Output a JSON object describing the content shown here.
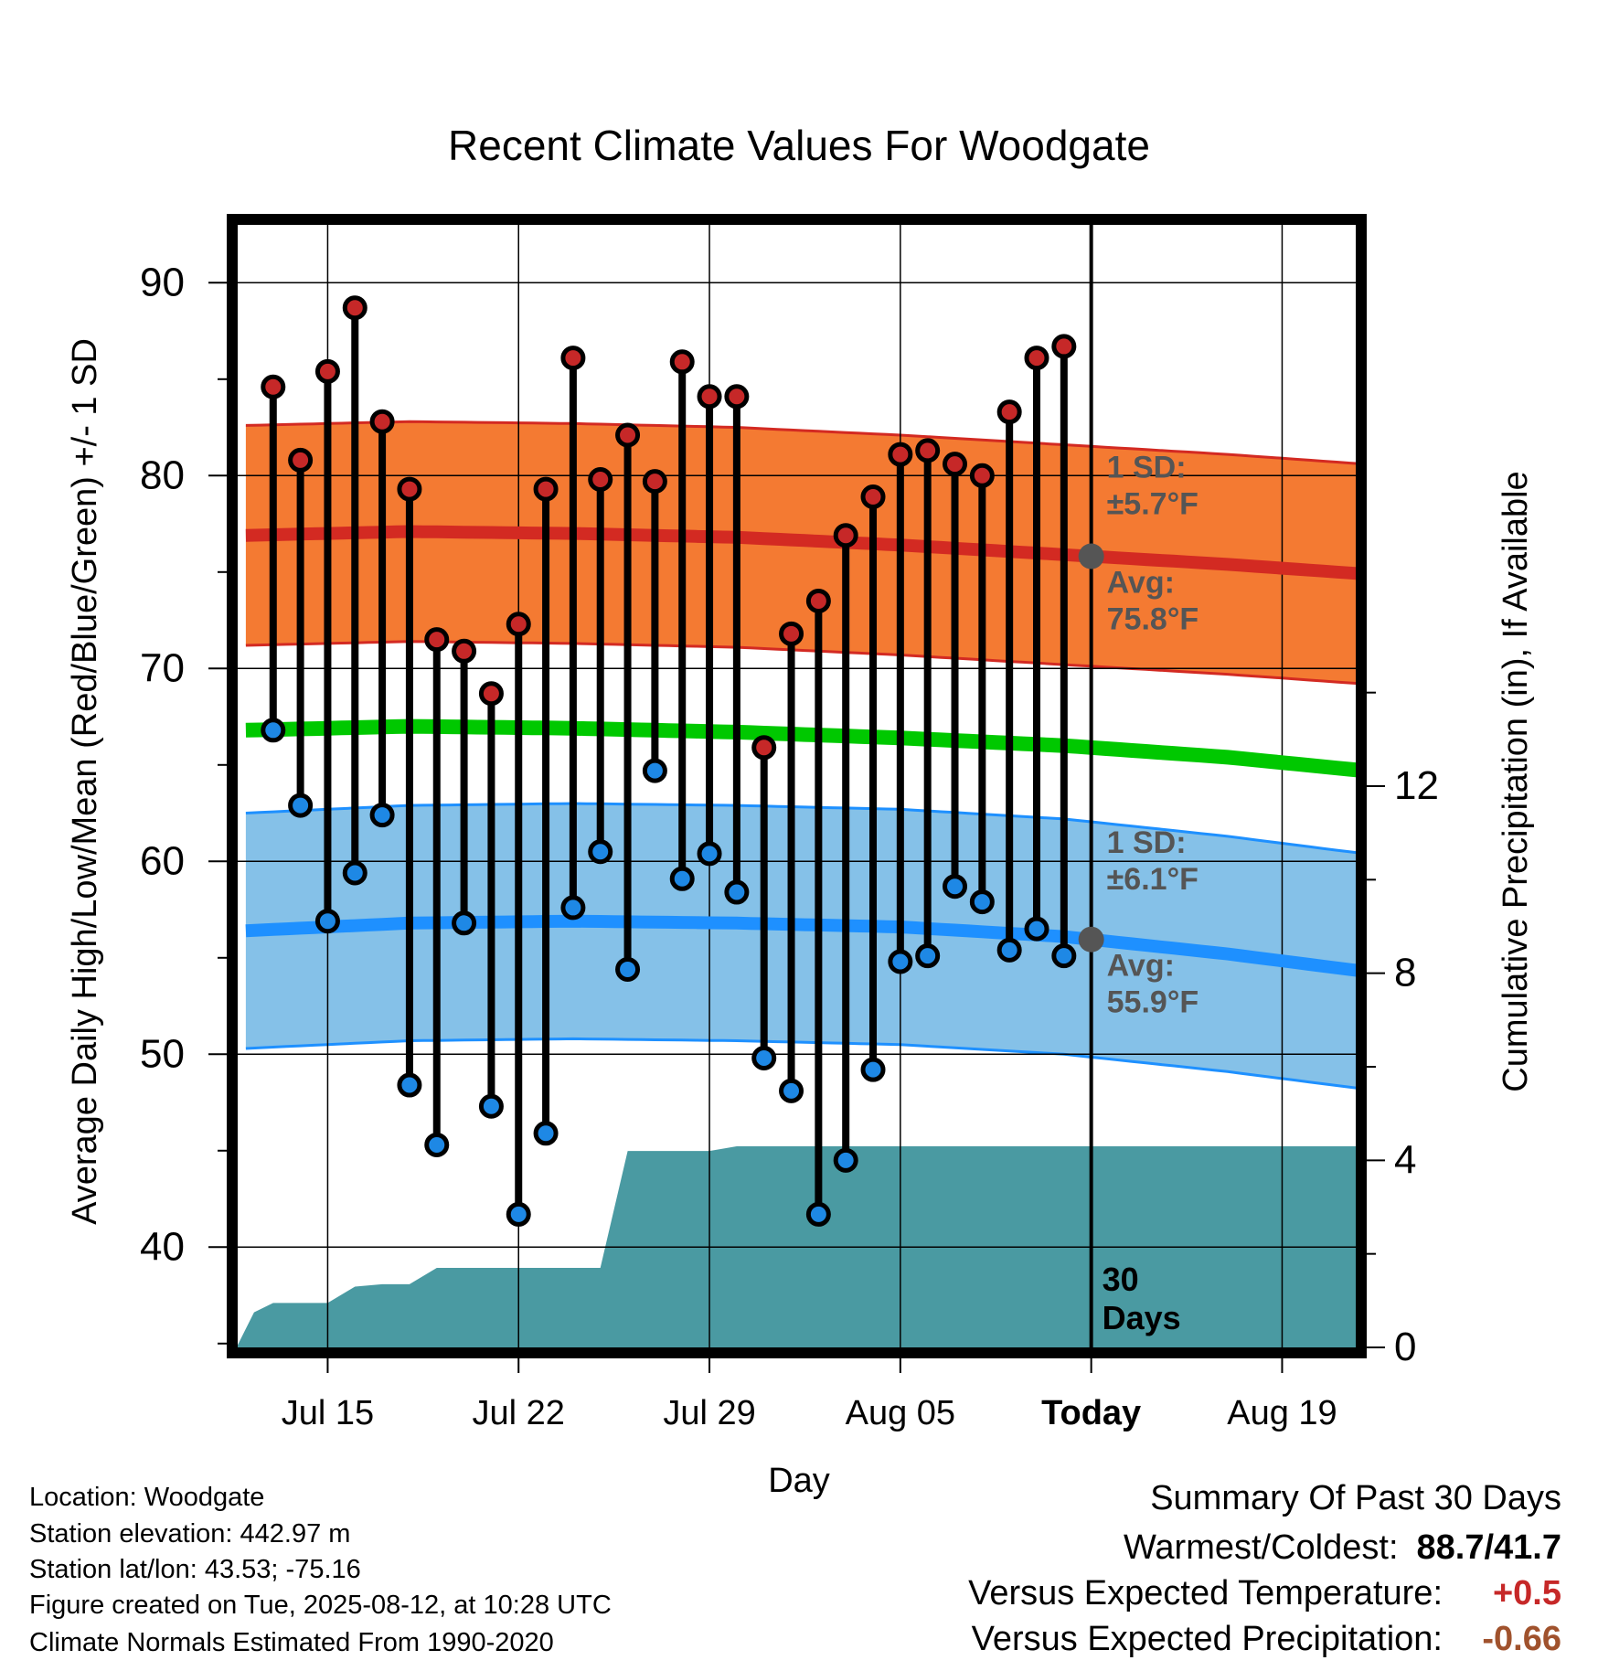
{
  "chart_data": {
    "type": "line",
    "title": "Recent Climate Values For Woodgate",
    "xlabel": "Day",
    "ylabel": "Average Daily High/Low/Mean (Red/Blue/Green) +/- 1 SD",
    "y2label": "Cumulative Precipitation (in), If Available",
    "x_tick_labels": [
      "Jul 15",
      "Jul 22",
      "Jul 29",
      "Aug 05",
      "Today",
      "Aug 19"
    ],
    "x_tick_days": [
      3,
      10,
      17,
      24,
      31,
      38
    ],
    "y_ticks": [
      40,
      50,
      60,
      70,
      80,
      90
    ],
    "y2_ticks": [
      0,
      4,
      8,
      12
    ],
    "ylim": [
      34.8,
      93.0
    ],
    "y2lim": [
      0,
      24
    ],
    "xlim_days": [
      -0.3,
      40.7
    ],
    "grid": true,
    "first_day": "Jul 12",
    "today_day": 31,
    "today_label": "30 Days",
    "highs": [
      84.6,
      80.8,
      85.4,
      88.7,
      82.8,
      79.3,
      71.5,
      70.9,
      68.7,
      72.3,
      79.3,
      86.1,
      79.8,
      82.1,
      79.7,
      85.9,
      84.1,
      84.1,
      65.9,
      71.8,
      73.5,
      76.9,
      78.9,
      81.1,
      81.3,
      80.6,
      80.0,
      83.3,
      86.1,
      86.7
    ],
    "lows": [
      66.8,
      62.9,
      56.9,
      59.4,
      62.4,
      48.4,
      45.3,
      56.8,
      47.3,
      41.7,
      45.9,
      57.6,
      60.5,
      54.4,
      64.7,
      59.1,
      60.4,
      58.4,
      49.8,
      48.1,
      41.7,
      44.5,
      49.2,
      54.8,
      55.1,
      58.7,
      57.9,
      55.4,
      56.5,
      55.1
    ],
    "normal_high": {
      "days": [
        0,
        6,
        12,
        18,
        24,
        30,
        36,
        41
      ],
      "avg": [
        76.9,
        77.1,
        77.0,
        76.8,
        76.4,
        75.9,
        75.4,
        74.9
      ],
      "sd": 5.7
    },
    "normal_low": {
      "days": [
        0,
        6,
        12,
        18,
        24,
        30,
        36,
        41
      ],
      "avg": [
        56.4,
        56.8,
        56.9,
        56.8,
        56.6,
        56.1,
        55.2,
        54.3
      ],
      "sd": 6.1
    },
    "normal_mean": {
      "days": [
        0,
        6,
        12,
        18,
        24,
        30,
        36,
        41
      ],
      "avg": [
        66.8,
        67.0,
        66.9,
        66.7,
        66.4,
        66.0,
        65.4,
        64.7
      ]
    },
    "precip_cumulative": {
      "days": [
        -0.3,
        0.3,
        1,
        2,
        3,
        4,
        5,
        6,
        7,
        8,
        9,
        10,
        11,
        12,
        13,
        14,
        15,
        16,
        17,
        18,
        19,
        40.7
      ],
      "values": [
        0.05,
        0.75,
        0.95,
        0.95,
        0.95,
        1.3,
        1.35,
        1.35,
        1.7,
        1.7,
        1.7,
        1.7,
        1.7,
        1.7,
        1.7,
        4.2,
        4.2,
        4.2,
        4.2,
        4.3,
        4.3,
        4.3
      ]
    },
    "annotations": {
      "high_sd_line1": "1 SD:",
      "high_sd_line2": "±5.7°F",
      "high_avg_line1": "Avg:",
      "high_avg_line2": "75.8°F",
      "low_sd_line1": "1 SD:",
      "low_sd_line2": "±6.1°F",
      "low_avg_line1": "Avg:",
      "low_avg_line2": "55.9°F"
    },
    "colors": {
      "high_band": "#f47a32",
      "high_avg": "#d32a22",
      "low_band": "#85c1e8",
      "low_avg": "#1e90ff",
      "mean": "#00c800",
      "precip": "#4a9aa2",
      "marker_high": "#c62828",
      "marker_low": "#1e88e5",
      "annotation": "#555555"
    }
  },
  "footer": {
    "location": "Location: Woodgate",
    "elevation": "Station elevation: 442.97 m",
    "latlon": "Station lat/lon: 43.53; -75.16",
    "created": "Figure created on Tue, 2025-08-12, at 10:28 UTC",
    "normals": "Climate Normals Estimated From 1990-2020"
  },
  "summary": {
    "title": "Summary Of Past 30 Days",
    "warmest_label": "Warmest/Coldest:",
    "warmest_value": "88.7/41.7",
    "temp_label": "Versus Expected Temperature:",
    "temp_value": "+0.5",
    "temp_color": "#c62828",
    "precip_label": "Versus Expected Precipitation:",
    "precip_value": "-0.66",
    "precip_color": "#a0522d"
  }
}
